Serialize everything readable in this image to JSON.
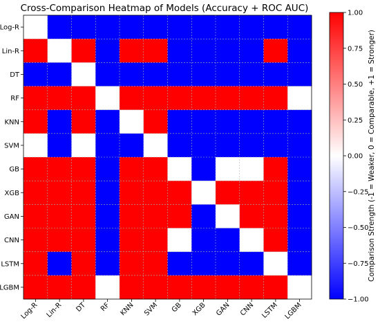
{
  "chart_data": {
    "type": "heatmap",
    "title": "Cross-Comparison Heatmap of Models (Accuracy + ROC AUC)",
    "rows": [
      "Log-R",
      "Lin-R",
      "DT",
      "RF",
      "KNN",
      "SVM",
      "GB",
      "XGB",
      "GAN",
      "CNN",
      "LSTM",
      "LGBM"
    ],
    "cols": [
      "Log-R",
      "Lin-R",
      "DT",
      "RF",
      "KNN",
      "SVM",
      "GB",
      "XGB",
      "GAN",
      "CNN",
      "LSTM",
      "LGBM"
    ],
    "values": [
      [
        0,
        -1,
        -1,
        -1,
        -1,
        -1,
        -1,
        -1,
        -1,
        -1,
        -1,
        -1
      ],
      [
        1,
        0,
        1,
        -1,
        1,
        1,
        -1,
        -1,
        -1,
        -1,
        1,
        -1
      ],
      [
        -1,
        -1,
        0,
        -1,
        -1,
        -1,
        -1,
        -1,
        -1,
        -1,
        -1,
        -1
      ],
      [
        1,
        1,
        1,
        0,
        1,
        1,
        1,
        1,
        1,
        1,
        1,
        0
      ],
      [
        1,
        -1,
        1,
        -1,
        0,
        1,
        -1,
        -1,
        -1,
        -1,
        -1,
        -1
      ],
      [
        0,
        -1,
        0,
        -1,
        -1,
        0,
        -1,
        -1,
        -1,
        -1,
        -1,
        -1
      ],
      [
        1,
        1,
        1,
        -1,
        1,
        1,
        0,
        -1,
        0,
        0,
        1,
        -1
      ],
      [
        1,
        1,
        1,
        -1,
        1,
        1,
        1,
        0,
        1,
        1,
        1,
        -1
      ],
      [
        1,
        1,
        1,
        -1,
        1,
        1,
        1,
        -1,
        0,
        1,
        1,
        -1
      ],
      [
        1,
        1,
        1,
        -1,
        1,
        1,
        0,
        -1,
        -1,
        0,
        1,
        -1
      ],
      [
        1,
        -1,
        1,
        -1,
        1,
        1,
        -1,
        -1,
        -1,
        -1,
        0,
        -1
      ],
      [
        1,
        1,
        1,
        0,
        1,
        1,
        1,
        1,
        1,
        1,
        1,
        0
      ]
    ],
    "colorbar": {
      "label": "Comparison Strength (-1 = Weaker, 0 = Comparable, +1 = Stronger)",
      "min": -1,
      "max": 1,
      "ticks": [
        "1.00",
        "0.75",
        "0.50",
        "0.25",
        "0.00",
        "−0.25",
        "−0.50",
        "−0.75",
        "−1.00"
      ],
      "colors": {
        "low": "#0000ff",
        "mid": "#ffffff",
        "high": "#ff0000"
      }
    },
    "grid": true
  }
}
